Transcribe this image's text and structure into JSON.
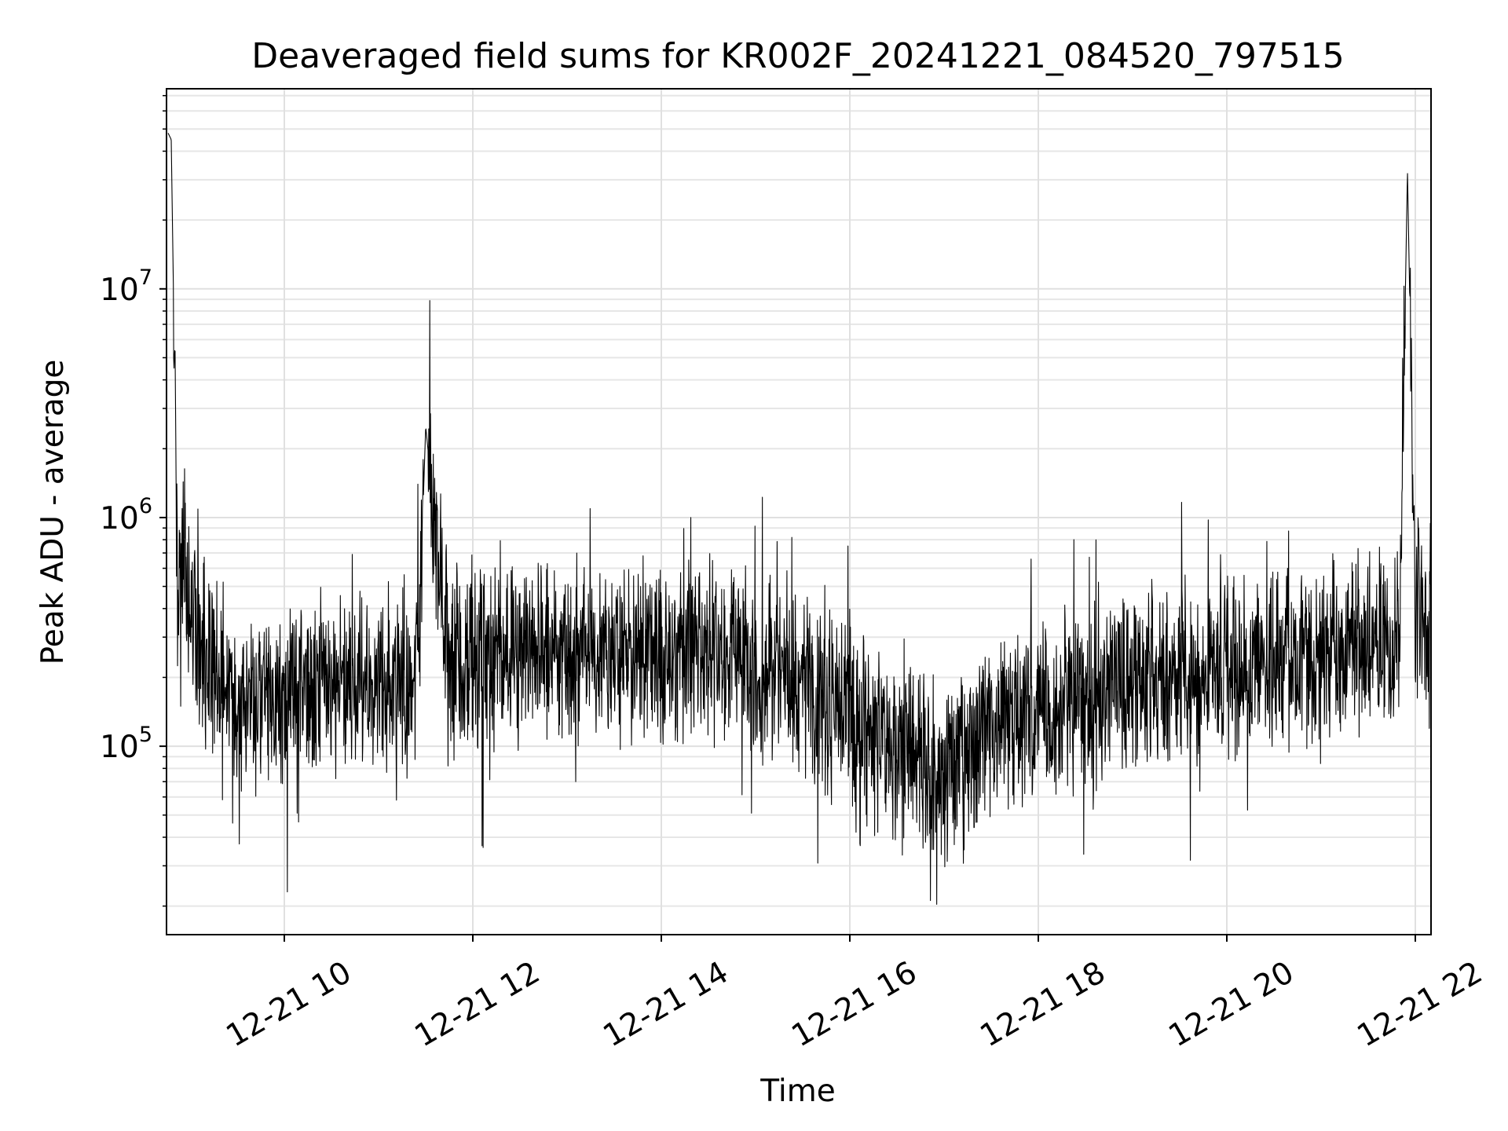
{
  "chart_data": {
    "type": "line",
    "title": "Deaveraged field sums for KR002F_20241221_084520_797515",
    "xlabel": "Time",
    "ylabel": "Peak ADU - average",
    "xlim": [
      "2024-12-21 08:45",
      "2024-12-21 22:10"
    ],
    "ylim": [
      15000,
      75000000
    ],
    "yscale": "log",
    "grid": true,
    "x_ticks": [
      {
        "label": "12-21 10",
        "value": "2024-12-21 10:00"
      },
      {
        "label": "12-21 12",
        "value": "2024-12-21 12:00"
      },
      {
        "label": "12-21 14",
        "value": "2024-12-21 14:00"
      },
      {
        "label": "12-21 16",
        "value": "2024-12-21 16:00"
      },
      {
        "label": "12-21 18",
        "value": "2024-12-21 18:00"
      },
      {
        "label": "12-21 20",
        "value": "2024-12-21 20:00"
      },
      {
        "label": "12-21 22",
        "value": "2024-12-21 22:00"
      }
    ],
    "y_ticks": [
      {
        "base": "10",
        "exp": "5",
        "value": 100000
      },
      {
        "base": "10",
        "exp": "6",
        "value": 1000000
      },
      {
        "base": "10",
        "exp": "7",
        "value": 10000000
      }
    ],
    "line_color": "#000000",
    "series": [
      {
        "x": [
          "2024-12-21 08:46",
          "2024-12-21 08:48",
          "2024-12-21 08:52",
          "2024-12-21 08:56",
          "2024-12-21 09:00",
          "2024-12-21 09:05",
          "2024-12-21 09:10",
          "2024-12-21 09:20",
          "2024-12-21 09:30",
          "2024-12-21 09:45",
          "2024-12-21 10:00",
          "2024-12-21 10:15",
          "2024-12-21 10:30",
          "2024-12-21 10:45",
          "2024-12-21 11:00",
          "2024-12-21 11:15",
          "2024-12-21 11:25",
          "2024-12-21 11:30",
          "2024-12-21 11:45",
          "2024-12-21 12:00",
          "2024-12-21 12:30",
          "2024-12-21 13:00",
          "2024-12-21 13:30",
          "2024-12-21 14:00",
          "2024-12-21 14:30",
          "2024-12-21 15:00",
          "2024-12-21 15:30",
          "2024-12-21 16:00",
          "2024-12-21 16:30",
          "2024-12-21 17:00",
          "2024-12-21 17:30",
          "2024-12-21 18:00",
          "2024-12-21 18:30",
          "2024-12-21 19:00",
          "2024-12-21 19:30",
          "2024-12-21 20:00",
          "2024-12-21 20:30",
          "2024-12-21 21:00",
          "2024-12-21 21:30",
          "2024-12-21 21:50",
          "2024-12-21 21:55",
          "2024-12-21 22:00",
          "2024-12-21 22:10"
        ],
        "y": [
          48000000,
          45000000,
          600000,
          900000,
          400000,
          300000,
          250000,
          200000,
          180000,
          160000,
          160000,
          170000,
          180000,
          190000,
          200000,
          210000,
          220000,
          2500000,
          230000,
          240000,
          250000,
          260000,
          260000,
          250000,
          260000,
          230000,
          170000,
          140000,
          90000,
          80000,
          110000,
          140000,
          160000,
          190000,
          200000,
          220000,
          230000,
          250000,
          280000,
          330000,
          33000000,
          380000,
          400000
        ]
      }
    ]
  }
}
